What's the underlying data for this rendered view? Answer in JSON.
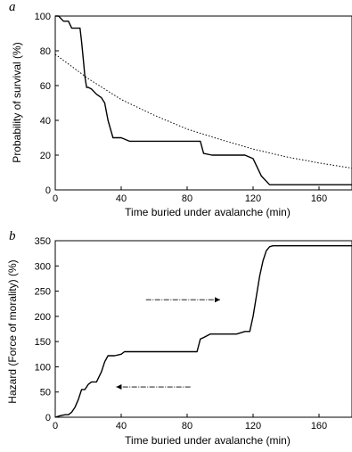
{
  "chart_data": [
    {
      "type": "line",
      "panel_label": "a",
      "xlabel": "Time buried under avalanche (min)",
      "ylabel": "Probability of survival (%)",
      "xlim": [
        0,
        180
      ],
      "ylim": [
        0,
        100
      ],
      "x_ticks": [
        "0",
        "40",
        "80",
        "120",
        "160"
      ],
      "y_ticks": [
        "0",
        "20",
        "40",
        "60",
        "80",
        "100"
      ],
      "series": [
        {
          "style": "solid-step",
          "x": [
            0,
            2,
            5,
            8,
            10,
            15,
            16,
            17,
            18,
            19,
            20,
            22,
            25,
            28,
            30,
            32,
            35,
            40,
            45,
            60,
            80,
            88,
            90,
            95,
            100,
            115,
            120,
            125,
            130,
            140,
            160,
            180
          ],
          "y": [
            100,
            100,
            97,
            97,
            93,
            93,
            85,
            75,
            65,
            59,
            59,
            58,
            55,
            53,
            50,
            40,
            30,
            30,
            28,
            28,
            28,
            28,
            21,
            20,
            20,
            20,
            18,
            8,
            3,
            3,
            3,
            3
          ]
        },
        {
          "style": "dotted-curve",
          "x": [
            0,
            20,
            40,
            60,
            80,
            100,
            120,
            140,
            160,
            180
          ],
          "y": [
            78,
            64,
            52,
            43,
            35,
            29,
            23.5,
            19,
            15.5,
            12.5
          ]
        }
      ]
    },
    {
      "type": "line",
      "panel_label": "b",
      "xlabel": "Time buried under avalanche (min)",
      "ylabel": "Hazard (Force of morality) (%)",
      "xlim": [
        0,
        180
      ],
      "ylim": [
        0,
        350
      ],
      "x_ticks": [
        "0",
        "40",
        "80",
        "120",
        "160"
      ],
      "y_ticks": [
        "0",
        "50",
        "100",
        "150",
        "200",
        "250",
        "300",
        "350"
      ],
      "series": [
        {
          "style": "solid-step",
          "x": [
            0,
            3,
            6,
            8,
            10,
            12,
            14,
            16,
            18,
            20,
            22,
            25,
            28,
            30,
            32,
            34,
            36,
            40,
            42,
            46,
            60,
            80,
            86,
            88,
            90,
            94,
            100,
            110,
            115,
            118,
            120,
            122,
            124,
            126,
            128,
            130,
            132,
            150,
            180
          ],
          "y": [
            0,
            3,
            5,
            5,
            10,
            20,
            35,
            55,
            55,
            65,
            70,
            70,
            90,
            110,
            122,
            122,
            122,
            125,
            130,
            130,
            130,
            130,
            130,
            155,
            158,
            165,
            165,
            165,
            170,
            170,
            200,
            240,
            280,
            310,
            330,
            338,
            340,
            340,
            340
          ]
        }
      ],
      "annotations": [
        {
          "type": "arrow",
          "direction": "right",
          "x_from": 55,
          "x_to": 100,
          "y": 233
        },
        {
          "type": "arrow",
          "direction": "left",
          "x_from": 82,
          "x_to": 37,
          "y": 60
        }
      ]
    }
  ]
}
